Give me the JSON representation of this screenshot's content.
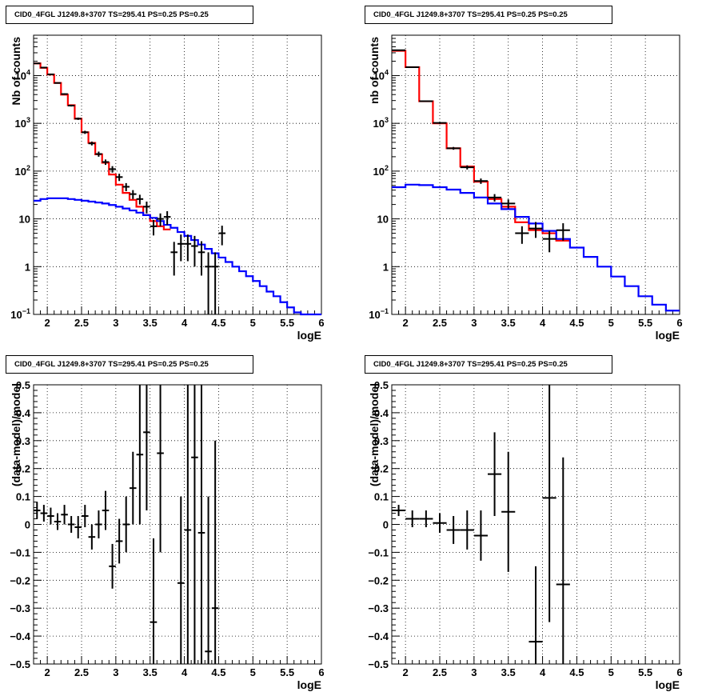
{
  "chart_data": [
    {
      "id": "tl",
      "type": "line",
      "title": "CID0_4FGL J1249.8+3707 TS=295.41 PS=0.25 PS=0.25",
      "xlabel": "logE",
      "ylabel": "Nb of counts",
      "yscale": "log",
      "xlim": [
        1.8,
        6.0
      ],
      "ylim": [
        0.1,
        70000
      ],
      "x_ticks": [
        "2",
        "2.5",
        "3",
        "3.5",
        "4",
        "4.5",
        "5",
        "5.5",
        "6"
      ],
      "y_ticks": [
        "10^-1",
        "1",
        "10",
        "10^2",
        "10^3",
        "10^4"
      ],
      "grid": true,
      "series": [
        {
          "key": "red",
          "color": "#ff0000",
          "style": "histogram",
          "edges": [
            1.8,
            1.9,
            2.0,
            2.1,
            2.2,
            2.3,
            2.4,
            2.5,
            2.6,
            2.7,
            2.8,
            2.9,
            3.0,
            3.1,
            3.2,
            3.3,
            3.4,
            3.5,
            3.6,
            3.7,
            3.8
          ],
          "values": [
            18000,
            14500,
            10500,
            7000,
            4000,
            2400,
            1250,
            650,
            390,
            225,
            150,
            85,
            52,
            35,
            25,
            18,
            12,
            9,
            7,
            6
          ]
        },
        {
          "key": "blue",
          "color": "#0000ff",
          "style": "histogram",
          "edges": [
            1.8,
            1.9,
            2.0,
            2.1,
            2.2,
            2.3,
            2.4,
            2.5,
            2.6,
            2.7,
            2.8,
            2.9,
            3.0,
            3.1,
            3.2,
            3.3,
            3.4,
            3.5,
            3.6,
            3.7,
            3.8,
            3.9,
            4.0,
            4.1,
            4.2,
            4.3,
            4.4,
            4.5,
            4.6,
            4.7,
            4.8,
            4.9,
            5.0,
            5.1,
            5.2,
            5.3,
            5.4,
            5.5,
            5.6,
            5.7,
            5.8,
            5.9,
            6.0
          ],
          "values": [
            24,
            26,
            27,
            27,
            27,
            26,
            25,
            24,
            23,
            22,
            21,
            19.5,
            18,
            16.5,
            15,
            13.5,
            12,
            10.5,
            9,
            7.5,
            6.5,
            5.3,
            4.4,
            3.6,
            2.9,
            2.35,
            1.9,
            1.55,
            1.25,
            1.0,
            0.8,
            0.63,
            0.5,
            0.39,
            0.3,
            0.24,
            0.18,
            0.14,
            0.11,
            0.1,
            0.1,
            0.1
          ]
        },
        {
          "key": "data",
          "color": "#000000",
          "style": "errorbars",
          "points": [
            {
              "x": 1.85,
              "y": 18000,
              "xerr": 0.05,
              "lo": 17500,
              "hi": 18500
            },
            {
              "x": 1.95,
              "y": 14700,
              "xerr": 0.05,
              "lo": 14300,
              "hi": 15100
            },
            {
              "x": 2.05,
              "y": 10600,
              "xerr": 0.05,
              "lo": 10300,
              "hi": 10900
            },
            {
              "x": 2.15,
              "y": 7000,
              "xerr": 0.05,
              "lo": 6800,
              "hi": 7200
            },
            {
              "x": 2.25,
              "y": 4100,
              "xerr": 0.05,
              "lo": 3950,
              "hi": 4250
            },
            {
              "x": 2.35,
              "y": 2350,
              "xerr": 0.05,
              "lo": 2250,
              "hi": 2450
            },
            {
              "x": 2.45,
              "y": 1250,
              "xerr": 0.05,
              "lo": 1180,
              "hi": 1320
            },
            {
              "x": 2.55,
              "y": 650,
              "xerr": 0.05,
              "lo": 600,
              "hi": 700
            },
            {
              "x": 2.65,
              "y": 380,
              "xerr": 0.05,
              "lo": 345,
              "hi": 415
            },
            {
              "x": 2.75,
              "y": 228,
              "xerr": 0.05,
              "lo": 200,
              "hi": 256
            },
            {
              "x": 2.85,
              "y": 155,
              "xerr": 0.05,
              "lo": 135,
              "hi": 175
            },
            {
              "x": 2.95,
              "y": 110,
              "xerr": 0.05,
              "lo": 93,
              "hi": 127
            },
            {
              "x": 3.05,
              "y": 75,
              "xerr": 0.05,
              "lo": 62,
              "hi": 88
            },
            {
              "x": 3.15,
              "y": 47,
              "xerr": 0.05,
              "lo": 38,
              "hi": 56
            },
            {
              "x": 3.25,
              "y": 33,
              "xerr": 0.05,
              "lo": 26,
              "hi": 40
            },
            {
              "x": 3.35,
              "y": 26,
              "xerr": 0.05,
              "lo": 20,
              "hi": 32
            },
            {
              "x": 3.45,
              "y": 18,
              "xerr": 0.05,
              "lo": 13,
              "hi": 23
            },
            {
              "x": 3.55,
              "y": 7,
              "xerr": 0.05,
              "lo": 4.5,
              "hi": 9.5
            },
            {
              "x": 3.65,
              "y": 10,
              "xerr": 0.05,
              "lo": 7,
              "hi": 13
            },
            {
              "x": 3.75,
              "y": 11,
              "xerr": 0.05,
              "lo": 7.5,
              "hi": 14.5
            },
            {
              "x": 3.85,
              "y": 2,
              "xerr": 0.05,
              "lo": 0.65,
              "hi": 3.3
            },
            {
              "x": 3.95,
              "y": 3,
              "xerr": 0.05,
              "lo": 1.3,
              "hi": 4.7
            },
            {
              "x": 4.05,
              "y": 3,
              "xerr": 0.05,
              "lo": 1.3,
              "hi": 4.7
            },
            {
              "x": 4.15,
              "y": 2.7,
              "xerr": 0.05,
              "lo": 1.0,
              "hi": 4.4
            },
            {
              "x": 4.25,
              "y": 2.0,
              "xerr": 0.05,
              "lo": 0.65,
              "hi": 3.4
            },
            {
              "x": 4.35,
              "y": 1.0,
              "xerr": 0.05,
              "lo": 0.1,
              "hi": 2.0
            },
            {
              "x": 4.45,
              "y": 1.0,
              "xerr": 0.05,
              "lo": 0.1,
              "hi": 2.0
            },
            {
              "x": 4.55,
              "y": 5,
              "xerr": 0.05,
              "lo": 2.8,
              "hi": 7.2
            }
          ]
        }
      ]
    },
    {
      "id": "tr",
      "type": "line",
      "title": "CID0_4FGL J1249.8+3707 TS=295.41 PS=0.25 PS=0.25",
      "xlabel": "logE",
      "ylabel": "nb of counts",
      "yscale": "log",
      "xlim": [
        1.8,
        6.0
      ],
      "ylim": [
        0.1,
        70000
      ],
      "x_ticks": [
        "2",
        "2.5",
        "3",
        "3.5",
        "4",
        "4.5",
        "5",
        "5.5",
        "6"
      ],
      "y_ticks": [
        "10^-1",
        "1",
        "10",
        "10^2",
        "10^3",
        "10^4"
      ],
      "grid": true,
      "series": [
        {
          "key": "red",
          "color": "#ff0000",
          "style": "histogram",
          "edges": [
            1.8,
            2.0,
            2.2,
            2.4,
            2.6,
            2.8,
            3.0,
            3.2,
            3.4,
            3.6,
            3.8,
            4.0,
            4.2,
            4.4
          ],
          "values": [
            33000,
            15000,
            2900,
            1000,
            300,
            125,
            60,
            26,
            18,
            8.5,
            5.8,
            5.0,
            3.5
          ]
        },
        {
          "key": "blue",
          "color": "#0000ff",
          "style": "histogram",
          "edges": [
            1.8,
            2.0,
            2.2,
            2.4,
            2.6,
            2.8,
            3.0,
            3.2,
            3.4,
            3.6,
            3.8,
            4.0,
            4.2,
            4.4,
            4.6,
            4.8,
            5.0,
            5.2,
            5.4,
            5.6,
            5.8,
            6.0
          ],
          "values": [
            46,
            52,
            51,
            46,
            41,
            35,
            28,
            21,
            16,
            11,
            8,
            5.6,
            3.8,
            2.5,
            1.6,
            1.0,
            0.62,
            0.39,
            0.24,
            0.16,
            0.12
          ]
        },
        {
          "key": "data",
          "color": "#000000",
          "style": "errorbars",
          "points": [
            {
              "x": 1.9,
              "y": 34000,
              "xerr": 0.1,
              "lo": 33300,
              "hi": 34700
            },
            {
              "x": 2.1,
              "y": 15000,
              "xerr": 0.1,
              "lo": 14600,
              "hi": 15400
            },
            {
              "x": 2.3,
              "y": 2900,
              "xerr": 0.1,
              "lo": 2800,
              "hi": 3000
            },
            {
              "x": 2.5,
              "y": 1020,
              "xerr": 0.1,
              "lo": 970,
              "hi": 1070
            },
            {
              "x": 2.7,
              "y": 300,
              "xerr": 0.1,
              "lo": 280,
              "hi": 320
            },
            {
              "x": 2.9,
              "y": 120,
              "xerr": 0.1,
              "lo": 108,
              "hi": 132
            },
            {
              "x": 3.1,
              "y": 62,
              "xerr": 0.1,
              "lo": 54,
              "hi": 70
            },
            {
              "x": 3.3,
              "y": 28,
              "xerr": 0.1,
              "lo": 23,
              "hi": 33
            },
            {
              "x": 3.5,
              "y": 21,
              "xerr": 0.1,
              "lo": 16.5,
              "hi": 25.5
            },
            {
              "x": 3.7,
              "y": 5,
              "xerr": 0.1,
              "lo": 3.0,
              "hi": 7.0
            },
            {
              "x": 3.9,
              "y": 6.3,
              "xerr": 0.1,
              "lo": 4.0,
              "hi": 8.6
            },
            {
              "x": 4.1,
              "y": 3.8,
              "xerr": 0.1,
              "lo": 2.0,
              "hi": 5.6
            },
            {
              "x": 4.3,
              "y": 5.8,
              "xerr": 0.1,
              "lo": 3.5,
              "hi": 8.1
            }
          ]
        }
      ]
    },
    {
      "id": "bl",
      "type": "scatter",
      "title": "CID0_4FGL J1249.8+3707 TS=295.41 PS=0.25 PS=0.25",
      "xlabel": "logE",
      "ylabel": "(data-model)/model",
      "xlim": [
        1.8,
        6.0
      ],
      "ylim": [
        -0.5,
        0.5
      ],
      "x_ticks": [
        "2",
        "2.5",
        "3",
        "3.5",
        "4",
        "4.5",
        "5",
        "5.5",
        "6"
      ],
      "y_ticks": [
        "−0.5",
        "−0.4",
        "−0.3",
        "−0.2",
        "−0.1",
        "0",
        "0.1",
        "0.2",
        "0.3",
        "0.4",
        "0.5"
      ],
      "grid": true,
      "series": [
        {
          "key": "data",
          "color": "#000000",
          "style": "errorbars",
          "points": [
            {
              "x": 1.85,
              "y": 0.05,
              "xerr": 0.05,
              "lo": 0.02,
              "hi": 0.08
            },
            {
              "x": 1.95,
              "y": 0.04,
              "xerr": 0.05,
              "lo": 0.01,
              "hi": 0.07
            },
            {
              "x": 2.05,
              "y": 0.03,
              "xerr": 0.05,
              "lo": 0.0,
              "hi": 0.06
            },
            {
              "x": 2.15,
              "y": 0.01,
              "xerr": 0.05,
              "lo": -0.02,
              "hi": 0.04
            },
            {
              "x": 2.25,
              "y": 0.035,
              "xerr": 0.05,
              "lo": 0.0,
              "hi": 0.07
            },
            {
              "x": 2.35,
              "y": 0.0,
              "xerr": 0.05,
              "lo": -0.03,
              "hi": 0.03
            },
            {
              "x": 2.45,
              "y": -0.01,
              "xerr": 0.05,
              "lo": -0.05,
              "hi": 0.03
            },
            {
              "x": 2.55,
              "y": 0.03,
              "xerr": 0.05,
              "lo": -0.01,
              "hi": 0.07
            },
            {
              "x": 2.65,
              "y": -0.045,
              "xerr": 0.05,
              "lo": -0.09,
              "hi": 0.0
            },
            {
              "x": 2.75,
              "y": 0.0,
              "xerr": 0.05,
              "lo": -0.05,
              "hi": 0.05
            },
            {
              "x": 2.85,
              "y": 0.05,
              "xerr": 0.05,
              "lo": -0.02,
              "hi": 0.12
            },
            {
              "x": 2.95,
              "y": -0.15,
              "xerr": 0.05,
              "lo": -0.23,
              "hi": -0.07
            },
            {
              "x": 3.05,
              "y": -0.06,
              "xerr": 0.05,
              "lo": -0.14,
              "hi": 0.02
            },
            {
              "x": 3.15,
              "y": 0.0,
              "xerr": 0.05,
              "lo": -0.1,
              "hi": 0.1
            },
            {
              "x": 3.25,
              "y": 0.13,
              "xerr": 0.05,
              "lo": 0.0,
              "hi": 0.26
            },
            {
              "x": 3.35,
              "y": 0.25,
              "xerr": 0.05,
              "lo": 0.0,
              "hi": 0.5
            },
            {
              "x": 3.45,
              "y": 0.33,
              "xerr": 0.05,
              "lo": 0.05,
              "hi": 0.5
            },
            {
              "x": 3.55,
              "y": -0.35,
              "xerr": 0.05,
              "lo": -0.5,
              "hi": -0.05
            },
            {
              "x": 3.65,
              "y": 0.255,
              "xerr": 0.05,
              "lo": -0.1,
              "hi": 0.5
            },
            {
              "x": 3.95,
              "y": -0.21,
              "xerr": 0.05,
              "lo": -0.5,
              "hi": 0.1
            },
            {
              "x": 4.05,
              "y": -0.02,
              "xerr": 0.05,
              "lo": -0.5,
              "hi": 0.5
            },
            {
              "x": 4.15,
              "y": 0.24,
              "xerr": 0.05,
              "lo": -0.5,
              "hi": 0.5
            },
            {
              "x": 4.25,
              "y": -0.03,
              "xerr": 0.05,
              "lo": -0.5,
              "hi": 0.5
            },
            {
              "x": 4.35,
              "y": -0.455,
              "xerr": 0.05,
              "lo": -0.5,
              "hi": 0.1
            },
            {
              "x": 4.45,
              "y": -0.3,
              "xerr": 0.05,
              "lo": -0.5,
              "hi": 0.3
            }
          ]
        }
      ]
    },
    {
      "id": "br",
      "type": "scatter",
      "title": "CID0_4FGL J1249.8+3707 TS=295.41 PS=0.25 PS=0.25",
      "xlabel": "logE",
      "ylabel": "(data-model)/model",
      "xlim": [
        1.8,
        6.0
      ],
      "ylim": [
        -0.5,
        0.5
      ],
      "x_ticks": [
        "2",
        "2.5",
        "3",
        "3.5",
        "4",
        "4.5",
        "5",
        "5.5",
        "6"
      ],
      "y_ticks": [
        "−0.5",
        "−0.4",
        "−0.3",
        "−0.2",
        "−0.1",
        "0",
        "0.1",
        "0.2",
        "0.3",
        "0.4",
        "0.5"
      ],
      "grid": true,
      "series": [
        {
          "key": "data",
          "color": "#000000",
          "style": "errorbars",
          "points": [
            {
              "x": 1.9,
              "y": 0.05,
              "xerr": 0.1,
              "lo": 0.03,
              "hi": 0.07
            },
            {
              "x": 2.1,
              "y": 0.02,
              "xerr": 0.1,
              "lo": -0.01,
              "hi": 0.05
            },
            {
              "x": 2.3,
              "y": 0.02,
              "xerr": 0.1,
              "lo": -0.01,
              "hi": 0.05
            },
            {
              "x": 2.5,
              "y": 0.005,
              "xerr": 0.1,
              "lo": -0.03,
              "hi": 0.04
            },
            {
              "x": 2.7,
              "y": -0.02,
              "xerr": 0.1,
              "lo": -0.07,
              "hi": 0.03
            },
            {
              "x": 2.9,
              "y": -0.02,
              "xerr": 0.1,
              "lo": -0.09,
              "hi": 0.05
            },
            {
              "x": 3.1,
              "y": -0.04,
              "xerr": 0.1,
              "lo": -0.13,
              "hi": 0.05
            },
            {
              "x": 3.3,
              "y": 0.18,
              "xerr": 0.1,
              "lo": 0.03,
              "hi": 0.33
            },
            {
              "x": 3.5,
              "y": 0.045,
              "xerr": 0.1,
              "lo": -0.17,
              "hi": 0.26
            },
            {
              "x": 3.9,
              "y": -0.42,
              "xerr": 0.1,
              "lo": -0.5,
              "hi": -0.15
            },
            {
              "x": 4.1,
              "y": 0.095,
              "xerr": 0.1,
              "lo": -0.35,
              "hi": 0.5
            },
            {
              "x": 4.3,
              "y": -0.215,
              "xerr": 0.1,
              "lo": -0.5,
              "hi": 0.24
            }
          ]
        }
      ]
    }
  ]
}
